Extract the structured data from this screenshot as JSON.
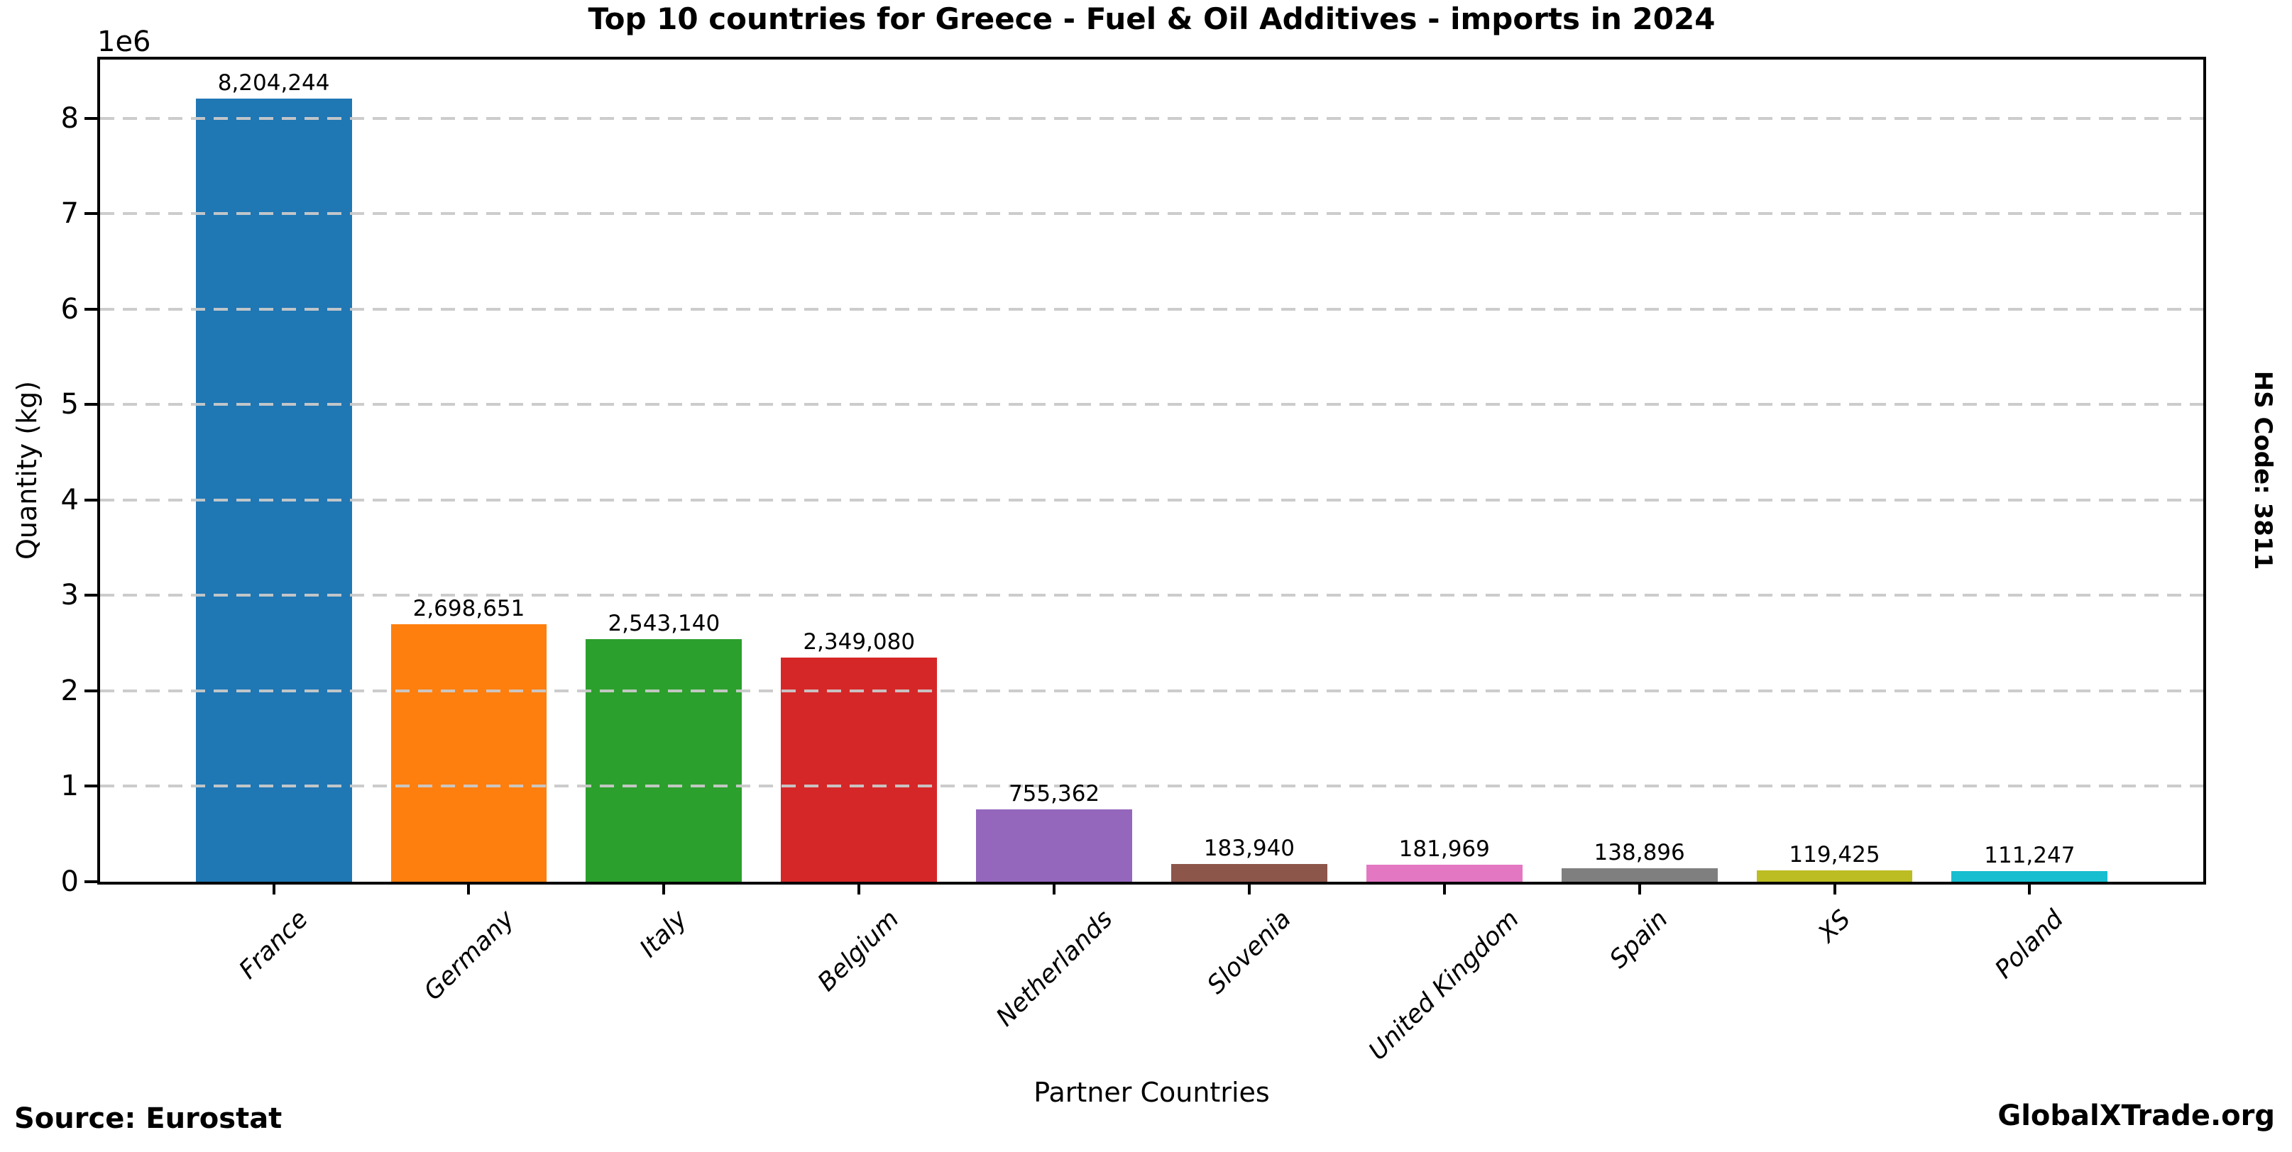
{
  "chart_data": {
    "type": "bar",
    "title": "Top 10 countries for Greece - Fuel & Oil Additives - imports in 2024",
    "xlabel": "Partner Countries",
    "ylabel": "Quantity (kg)",
    "y_offset_label": "1e6",
    "categories": [
      "France",
      "Germany",
      "Italy",
      "Belgium",
      "Netherlands",
      "Slovenia",
      "United Kingdom",
      "Spain",
      "XS",
      "Poland"
    ],
    "values": [
      8204244,
      2698651,
      2543140,
      2349080,
      755362,
      183940,
      181969,
      138896,
      119425,
      111247
    ],
    "value_labels": [
      "8,204,244",
      "2,698,651",
      "2,543,140",
      "2,349,080",
      "755,362",
      "183,940",
      "181,969",
      "138,896",
      "119,425",
      "111,247"
    ],
    "bar_colors": [
      "#1f77b4",
      "#ff7f0e",
      "#2ca02c",
      "#d62728",
      "#9467bd",
      "#8c564b",
      "#e377c2",
      "#7f7f7f",
      "#bcbd22",
      "#17becf"
    ],
    "y_ticks": [
      0,
      1,
      2,
      3,
      4,
      5,
      6,
      7,
      8
    ],
    "ylim": [
      0,
      8614456
    ],
    "grid": {
      "axis": "y",
      "style": "dashed",
      "color": "#c8c8c8",
      "on_top": true
    },
    "legend": "none"
  },
  "annotations": {
    "hs_code": "HS Code: 3811"
  },
  "footer": {
    "source": "Source: Eurostat",
    "brand": "GlobalXTrade.org"
  }
}
